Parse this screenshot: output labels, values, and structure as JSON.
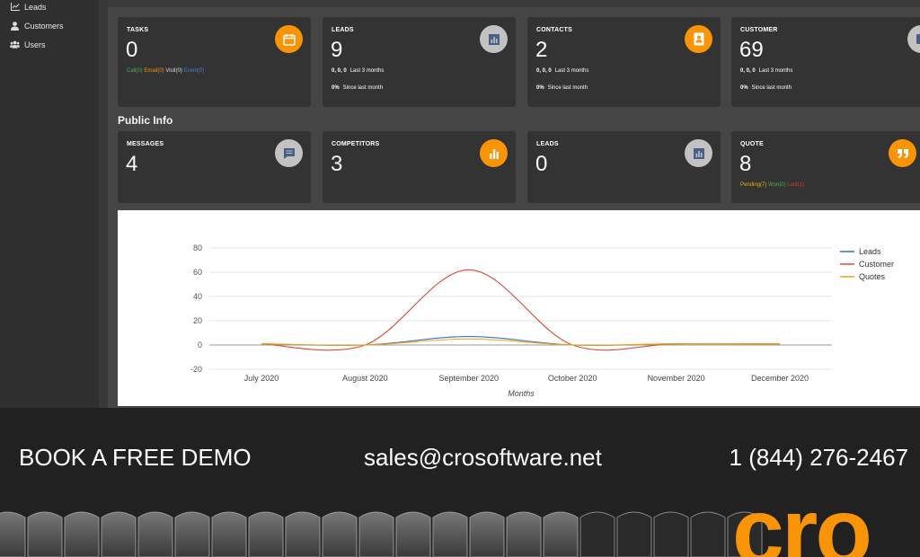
{
  "sidebar": {
    "items": [
      {
        "label": "Leads",
        "icon": "chart-line-icon"
      },
      {
        "label": "Customers",
        "icon": "user-icon"
      },
      {
        "label": "Users",
        "icon": "users-icon"
      }
    ]
  },
  "cards_top": [
    {
      "label": "TASKS",
      "value": "0",
      "icon": "calendar-icon",
      "badge_color": "#f89406",
      "task_counts": {
        "call": "Call(0)",
        "email": "Email(0)",
        "visit": "Visit(0)",
        "event": "Event(0)"
      }
    },
    {
      "label": "LEADS",
      "value": "9",
      "icon": "bar-chart-icon",
      "badge_color": "#c2c2c2",
      "line1_values": "0, 0, 0",
      "line1_text": "Last 3 months",
      "line2_values": "0%",
      "line2_text": "Since last month"
    },
    {
      "label": "CONTACTS",
      "value": "2",
      "icon": "contact-book-icon",
      "badge_color": "#f89406",
      "line1_values": "0, 0, 0",
      "line1_text": "Last 3 months",
      "line2_values": "0%",
      "line2_text": "Since last month"
    },
    {
      "label": "CUSTOMER",
      "value": "69",
      "icon": "wallet-icon",
      "badge_color": "#c2c2c2",
      "line1_values": "0, 0, 0",
      "line1_text": "Last 3 months",
      "line2_values": "0%",
      "line2_text": "Since last month"
    }
  ],
  "public_info": {
    "title": "Public Info"
  },
  "cards_bottom": [
    {
      "label": "MESSAGES",
      "value": "4",
      "icon": "message-icon",
      "badge_color": "#c2c2c2"
    },
    {
      "label": "COMPETITORS",
      "value": "3",
      "icon": "bar-chart-icon",
      "badge_color": "#f89406"
    },
    {
      "label": "LEADS",
      "value": "0",
      "icon": "bar-chart-icon",
      "badge_color": "#c2c2c2"
    },
    {
      "label": "QUOTE",
      "value": "8",
      "icon": "quote-icon",
      "badge_color": "#f89406",
      "quote_counts": {
        "pending": "Pending(7)",
        "won": "Won(0)",
        "lost": "Lost(1)"
      }
    }
  ],
  "colors": {
    "call": "#4caf50",
    "email": "#f89406",
    "visit": "#dddddd",
    "event": "#4a7bd0",
    "pending": "#f0b400",
    "won": "#4caf50",
    "lost": "#e53935"
  },
  "chart_data": {
    "type": "line",
    "categories": [
      "July 2020",
      "August 2020",
      "September 2020",
      "October 2020",
      "November 2020",
      "December 2020"
    ],
    "series": [
      {
        "name": "Leads",
        "color": "#3b6fc9",
        "values": [
          1,
          0,
          7,
          0,
          1,
          1
        ]
      },
      {
        "name": "Customer",
        "color": "#dd4b39",
        "values": [
          1,
          0,
          62,
          0,
          1,
          1
        ]
      },
      {
        "name": "Quotes",
        "color": "#f0a30a",
        "values": [
          1,
          0,
          5,
          0,
          1,
          1
        ]
      }
    ],
    "xlabel": "Months",
    "ylabel": "",
    "ylim": [
      -20,
      80
    ],
    "yticks": [
      80,
      60,
      40,
      20,
      0,
      -20
    ],
    "smooth": true,
    "grid": true,
    "legend": "right"
  },
  "footer": {
    "demo": "BOOK A FREE DEMO",
    "email": "sales@crosoftware.net",
    "phone": "1 (844) 276-2467",
    "logo_text": "cro",
    "logo_color": "#f89406"
  }
}
